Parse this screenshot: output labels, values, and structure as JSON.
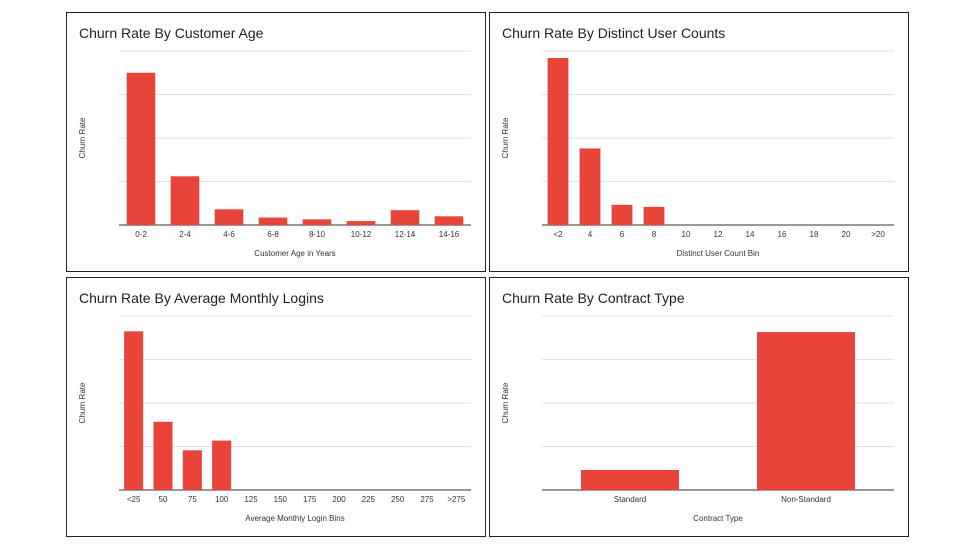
{
  "chart_data": [
    {
      "type": "bar",
      "title": "Churn Rate By Customer Age",
      "xlabel": "Customer Age in Years",
      "ylabel": "Churn Rate",
      "categories": [
        "0-2",
        "2-4",
        "4-6",
        "6-8",
        "8-10",
        "10-12",
        "12-14",
        "14-16"
      ],
      "values": [
        0.035,
        0.0112,
        0.0036,
        0.0017,
        0.0013,
        0.0009,
        0.0034,
        0.002
      ],
      "ylim": [
        0,
        0.04
      ],
      "grid": true,
      "bar_color": "#e9443a"
    },
    {
      "type": "bar",
      "title": "Churn Rate By Distinct User Counts",
      "xlabel": "Distinct User Count Bin",
      "ylabel": "Churn Rate",
      "categories": [
        "<2",
        "4",
        "6",
        "8",
        "10",
        "12",
        "14",
        "16",
        "18",
        "20",
        ">20"
      ],
      "values": [
        0.048,
        0.022,
        0.0058,
        0.0052,
        0,
        0,
        0,
        0,
        0,
        0,
        0
      ],
      "ylim": [
        0,
        0.05
      ],
      "grid": true,
      "bar_color": "#e9443a"
    },
    {
      "type": "bar",
      "title": "Churn Rate By Average Monthly Logins",
      "xlabel": "Average Monthly Login Bins",
      "ylabel": "Churn Rate",
      "categories": [
        "<25",
        "50",
        "75",
        "100",
        "125",
        "150",
        "175",
        "200",
        "225",
        "250",
        "275",
        ">275"
      ],
      "values": [
        0.0456,
        0.0196,
        0.0114,
        0.0142,
        0,
        0,
        0,
        0,
        0,
        0,
        0,
        0
      ],
      "ylim": [
        0,
        0.05
      ],
      "grid": true,
      "bar_color": "#e9443a"
    },
    {
      "type": "bar",
      "title": "Churn Rate By Contract Type",
      "xlabel": "Contract Type",
      "ylabel": "Churn Rate",
      "categories": [
        "Standard",
        "Non-Standard"
      ],
      "values": [
        0.0046,
        0.0363
      ],
      "ylim": [
        0,
        0.04
      ],
      "grid": true,
      "bar_color": "#e9443a"
    }
  ]
}
